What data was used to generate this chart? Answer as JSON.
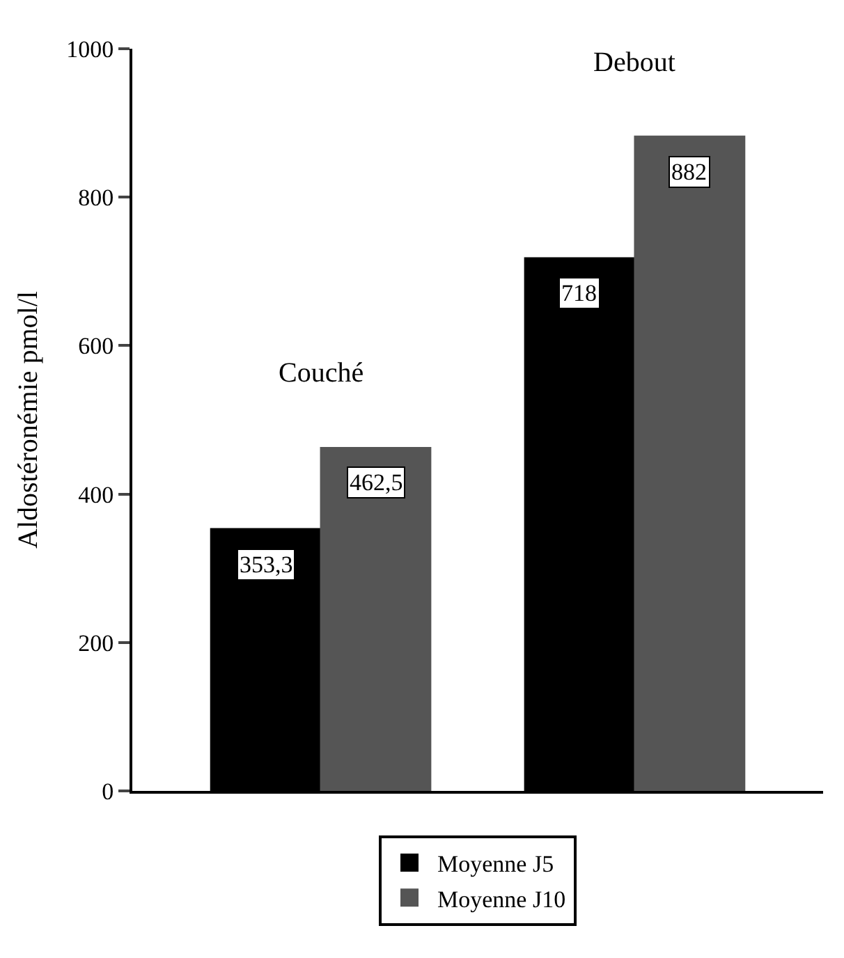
{
  "chart_data": {
    "type": "bar",
    "ylabel": "Aldostéronémie pmol/l",
    "categories": [
      "Couché",
      "Debout"
    ],
    "series": [
      {
        "name": "Moyenne J5",
        "color": "#000000",
        "values": [
          353.3,
          718
        ],
        "value_labels": [
          "353,3",
          "718"
        ]
      },
      {
        "name": "Moyenne J10",
        "color": "#555555",
        "values": [
          462.5,
          882
        ],
        "value_labels": [
          "462,5",
          "882"
        ]
      }
    ],
    "ylim": [
      0,
      1000
    ],
    "yticks": [
      0,
      200,
      400,
      600,
      800,
      1000
    ],
    "grid": false,
    "legend": "bottom"
  }
}
